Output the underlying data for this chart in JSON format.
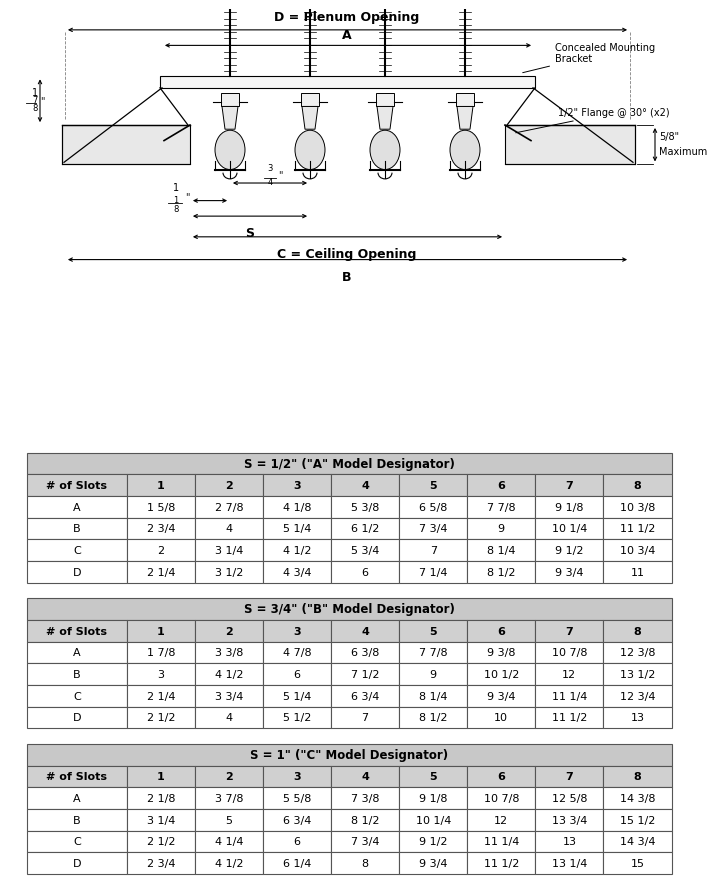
{
  "table1_title": "S = 1/2\" (\"A\" Model Designator)",
  "table2_title": "S = 3/4\" (\"B\" Model Designator)",
  "table3_title": "S = 1\" (\"C\" Model Designator)",
  "col_headers": [
    "# of Slots",
    "1",
    "2",
    "3",
    "4",
    "5",
    "6",
    "7",
    "8"
  ],
  "table1_data": [
    [
      "A",
      "1 5/8",
      "2 7/8",
      "4 1/8",
      "5 3/8",
      "6 5/8",
      "7 7/8",
      "9 1/8",
      "10 3/8"
    ],
    [
      "B",
      "2 3/4",
      "4",
      "5 1/4",
      "6 1/2",
      "7 3/4",
      "9",
      "10 1/4",
      "11 1/2"
    ],
    [
      "C",
      "2",
      "3 1/4",
      "4 1/2",
      "5 3/4",
      "7",
      "8 1/4",
      "9 1/2",
      "10 3/4"
    ],
    [
      "D",
      "2 1/4",
      "3 1/2",
      "4 3/4",
      "6",
      "7 1/4",
      "8 1/2",
      "9 3/4",
      "11"
    ]
  ],
  "table2_data": [
    [
      "A",
      "1 7/8",
      "3 3/8",
      "4 7/8",
      "6 3/8",
      "7 7/8",
      "9 3/8",
      "10 7/8",
      "12 3/8"
    ],
    [
      "B",
      "3",
      "4 1/2",
      "6",
      "7 1/2",
      "9",
      "10 1/2",
      "12",
      "13 1/2"
    ],
    [
      "C",
      "2 1/4",
      "3 3/4",
      "5 1/4",
      "6 3/4",
      "8 1/4",
      "9 3/4",
      "11 1/4",
      "12 3/4"
    ],
    [
      "D",
      "2 1/2",
      "4",
      "5 1/2",
      "7",
      "8 1/2",
      "10",
      "11 1/2",
      "13"
    ]
  ],
  "table3_data": [
    [
      "A",
      "2 1/8",
      "3 7/8",
      "5 5/8",
      "7 3/8",
      "9 1/8",
      "10 7/8",
      "12 5/8",
      "14 3/8"
    ],
    [
      "B",
      "3 1/4",
      "5",
      "6 3/4",
      "8 1/2",
      "10 1/4",
      "12",
      "13 3/4",
      "15 1/2"
    ],
    [
      "C",
      "2 1/2",
      "4 1/4",
      "6",
      "7 3/4",
      "9 1/2",
      "11 1/4",
      "13",
      "14 3/4"
    ],
    [
      "D",
      "2 3/4",
      "4 1/2",
      "6 1/4",
      "8",
      "9 3/4",
      "11 1/2",
      "13 1/4",
      "15"
    ]
  ],
  "header_color": "#d0d0d0",
  "title_color": "#c8c8c8",
  "bg_color": "#ffffff",
  "diagram": {
    "D_label": "D = Plenum Opening",
    "A_label": "A",
    "concealed": "Concealed Mounting\nBracket",
    "flange": "1/2\" Flange @ 30° (x2)",
    "max_label": "5/8\" Maximum",
    "height_label": "1 7/8\"",
    "dim_118": "1 1/8\"",
    "dim_34": "3/4\"",
    "S_label": "S",
    "C_label": "C = Ceiling Opening",
    "B_label": "B"
  },
  "diagram_frac_labels": {
    "height_whole": "1",
    "height_num": "7",
    "height_den": "8",
    "max_num": "5",
    "max_den": "8",
    "dim118_whole": "1",
    "dim118_num": "1",
    "dim118_den": "8",
    "dim34_num": "3",
    "dim34_den": "4",
    "half_flange_num": "1",
    "half_flange_den": "2"
  }
}
